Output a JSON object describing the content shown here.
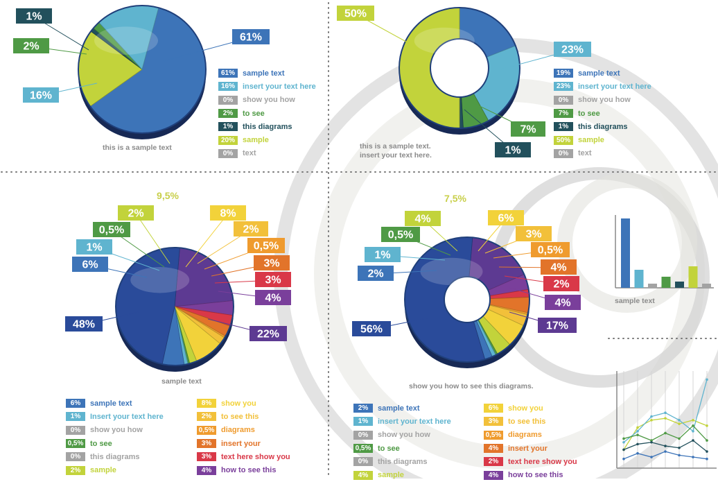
{
  "colors": {
    "blue": "#3d74b8",
    "lightblue": "#5fb4cf",
    "gray": "#a3a3a3",
    "green": "#4f9a45",
    "darkteal": "#22505c",
    "yellowgreen": "#c2d33b",
    "navy": "#2a4b9a",
    "yellow": "#f2d23a",
    "orange": "#ef9b2e",
    "darkorange": "#e2742a",
    "red": "#d93848",
    "purple": "#7a3f9b",
    "grid": "#b9b9b9"
  },
  "chart_data": [
    {
      "type": "pie",
      "title": "this is a sample text",
      "slices": [
        {
          "value_label": "61%",
          "value": 61,
          "legend": "sample text",
          "color": "#3d74b8"
        },
        {
          "value_label": "16%",
          "value": 16,
          "legend": "insert your text here",
          "color": "#5fb4cf"
        },
        {
          "value_label": "0%",
          "value": 0,
          "legend": "show you how",
          "color": "#a3a3a3"
        },
        {
          "value_label": "2%",
          "value": 2,
          "legend": "to see",
          "color": "#4f9a45"
        },
        {
          "value_label": "1%",
          "value": 1,
          "legend": "this diagrams",
          "color": "#22505c"
        },
        {
          "value_label": "20%",
          "value": 20,
          "legend": "sample",
          "color": "#c2d33b"
        },
        {
          "value_label": "0%",
          "value": 0,
          "legend": "text",
          "color": "#a3a3a3"
        }
      ]
    },
    {
      "type": "pie",
      "title": "this is a sample text.",
      "subtitle": "insert your text here.",
      "slices": [
        {
          "value_label": "19%",
          "value": 19,
          "legend": "sample text",
          "color": "#3d74b8"
        },
        {
          "value_label": "23%",
          "value": 23,
          "legend": "insert your text here",
          "color": "#5fb4cf"
        },
        {
          "value_label": "0%",
          "value": 0,
          "legend": "show you how",
          "color": "#a3a3a3"
        },
        {
          "value_label": "7%",
          "value": 7,
          "legend": "to see",
          "color": "#4f9a45"
        },
        {
          "value_label": "1%",
          "value": 1,
          "legend": "this diagrams",
          "color": "#22505c"
        },
        {
          "value_label": "50%",
          "value": 50,
          "legend": "sample",
          "color": "#c2d33b"
        },
        {
          "value_label": "0%",
          "value": 0,
          "legend": "text",
          "color": "#a3a3a3"
        }
      ]
    },
    {
      "type": "pie",
      "title": "sample text",
      "extra_label": "9,5%",
      "slices": [
        {
          "value_label": "6%",
          "value": 6,
          "legend": "sample text",
          "color": "#3d74b8"
        },
        {
          "value_label": "1%",
          "value": 1,
          "legend": "Insert your text here",
          "color": "#5fb4cf"
        },
        {
          "value_label": "0%",
          "value": 0,
          "legend": "show you how",
          "color": "#a3a3a3"
        },
        {
          "value_label": "0,5%",
          "value": 0.5,
          "legend": "to see",
          "color": "#4f9a45"
        },
        {
          "value_label": "0%",
          "value": 0,
          "legend": "this diagrams",
          "color": "#a3a3a3"
        },
        {
          "value_label": "2%",
          "value": 2,
          "legend": "sample",
          "color": "#c2d33b"
        },
        {
          "value_label": "8%",
          "value": 8,
          "legend": "show you",
          "color": "#f2d23a"
        },
        {
          "value_label": "2%",
          "value": 2,
          "legend": "to see this",
          "color": "#f2c03a"
        },
        {
          "value_label": "0,5%",
          "value": 0.5,
          "legend": "diagrams",
          "color": "#ef9b2e"
        },
        {
          "value_label": "3%",
          "value": 3,
          "legend": "insert your",
          "color": "#e2742a"
        },
        {
          "value_label": "3%",
          "value": 3,
          "legend": "text here show you",
          "color": "#d93848"
        },
        {
          "value_label": "4%",
          "value": 4,
          "legend": "how to see this",
          "color": "#7a3f9b"
        },
        {
          "value_label": "22%",
          "value": 22,
          "legend": "",
          "color": "#5d3a92"
        },
        {
          "value_label": "48%",
          "value": 48,
          "legend": "",
          "color": "#2a4b9a"
        }
      ]
    },
    {
      "type": "pie",
      "title": "show you how to see this diagrams.",
      "extra_label": "7,5%",
      "slices": [
        {
          "value_label": "2%",
          "value": 2,
          "legend": "sample text",
          "color": "#3d74b8"
        },
        {
          "value_label": "1%",
          "value": 1,
          "legend": "insert your text here",
          "color": "#5fb4cf"
        },
        {
          "value_label": "0%",
          "value": 0,
          "legend": "show you how",
          "color": "#a3a3a3"
        },
        {
          "value_label": "0,5%",
          "value": 0.5,
          "legend": "to see",
          "color": "#4f9a45"
        },
        {
          "value_label": "0%",
          "value": 0,
          "legend": "this diagrams",
          "color": "#a3a3a3"
        },
        {
          "value_label": "4%",
          "value": 4,
          "legend": "sample",
          "color": "#c2d33b"
        },
        {
          "value_label": "6%",
          "value": 6,
          "legend": "show you",
          "color": "#f2d23a"
        },
        {
          "value_label": "3%",
          "value": 3,
          "legend": "to see this",
          "color": "#f2c03a"
        },
        {
          "value_label": "0,5%",
          "value": 0.5,
          "legend": "diagrams",
          "color": "#ef9b2e"
        },
        {
          "value_label": "4%",
          "value": 4,
          "legend": "insert your",
          "color": "#e2742a"
        },
        {
          "value_label": "2%",
          "value": 2,
          "legend": "text here show you",
          "color": "#d93848"
        },
        {
          "value_label": "4%",
          "value": 4,
          "legend": "how to see this",
          "color": "#7a3f9b"
        },
        {
          "value_label": "17%",
          "value": 17,
          "legend": "",
          "color": "#5d3a92"
        },
        {
          "value_label": "56%",
          "value": 56,
          "legend": "",
          "color": "#2a4b9a"
        }
      ]
    },
    {
      "type": "bar",
      "title": "sample text",
      "values": [
        10,
        2.6,
        0.6,
        1.6,
        0.9,
        3.1,
        0.6
      ],
      "colors": [
        "#3d74b8",
        "#5fb4cf",
        "#a3a3a3",
        "#4f9a45",
        "#22505c",
        "#c2d33b",
        "#a3a3a3"
      ]
    },
    {
      "type": "line",
      "series": [
        {
          "values": [
            1.0,
            2.2,
            2.6,
            2.7,
            2.4,
            2.6,
            2.3
          ],
          "color": "#c2d33b"
        },
        {
          "values": [
            1.4,
            2.0,
            2.8,
            3.0,
            2.6,
            2.0,
            4.8
          ],
          "color": "#5fb4cf"
        },
        {
          "values": [
            1.6,
            1.8,
            1.5,
            1.9,
            1.6,
            2.3,
            1.5
          ],
          "color": "#4f9a45"
        },
        {
          "values": [
            1.0,
            1.3,
            1.4,
            1.2,
            1.1,
            1.5,
            0.9
          ],
          "color": "#22505c"
        },
        {
          "values": [
            0.5,
            0.8,
            0.6,
            0.9,
            0.7,
            0.6,
            0.5
          ],
          "color": "#3d74b8"
        }
      ]
    }
  ]
}
